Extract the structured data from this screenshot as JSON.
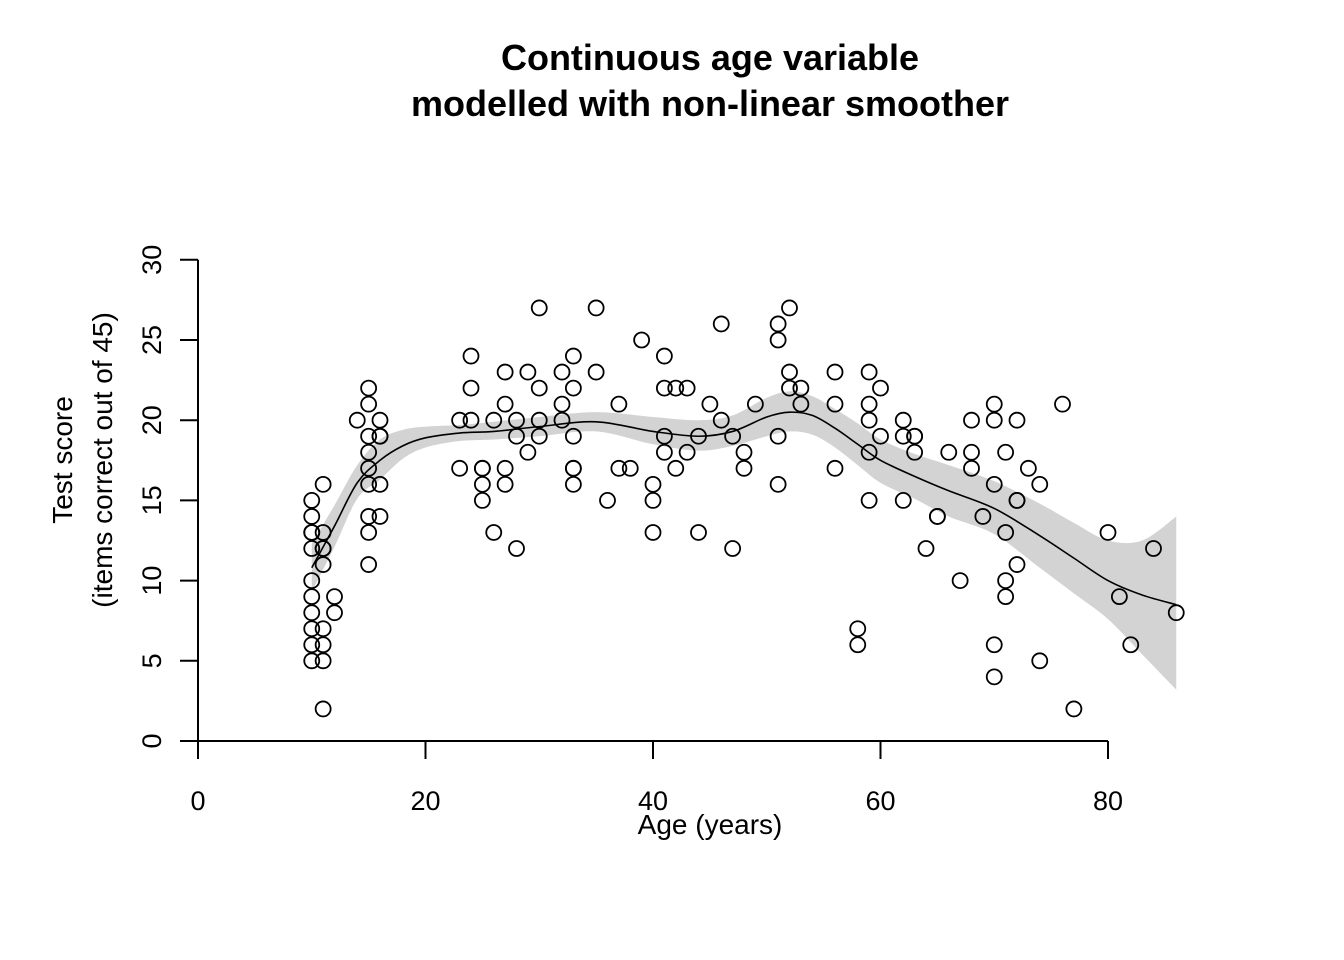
{
  "chart_data": {
    "type": "scatter",
    "title": [
      "Continuous age variable",
      "modelled with non-linear smoother"
    ],
    "xlabel": "Age (years)",
    "ylabel": [
      "Test score",
      "(items correct out of 45)"
    ],
    "xlim": [
      0,
      86
    ],
    "ylim": [
      0,
      30
    ],
    "x_ticks": [
      0,
      20,
      40,
      60,
      80
    ],
    "y_ticks": [
      0,
      5,
      10,
      15,
      20,
      25,
      30
    ],
    "grid": false,
    "points": [
      [
        10,
        15
      ],
      [
        10,
        14
      ],
      [
        10,
        13
      ],
      [
        10,
        13
      ],
      [
        10,
        12
      ],
      [
        10,
        10
      ],
      [
        10,
        9
      ],
      [
        10,
        8
      ],
      [
        10,
        7
      ],
      [
        10,
        6
      ],
      [
        10,
        5
      ],
      [
        11,
        16
      ],
      [
        11,
        13
      ],
      [
        11,
        12
      ],
      [
        11,
        12
      ],
      [
        11,
        11
      ],
      [
        11,
        7
      ],
      [
        11,
        6
      ],
      [
        11,
        5
      ],
      [
        11,
        2
      ],
      [
        12,
        9
      ],
      [
        12,
        8
      ],
      [
        14,
        20
      ],
      [
        15,
        22
      ],
      [
        15,
        21
      ],
      [
        15,
        19
      ],
      [
        15,
        18
      ],
      [
        15,
        17
      ],
      [
        15,
        16
      ],
      [
        15,
        14
      ],
      [
        15,
        13
      ],
      [
        15,
        11
      ],
      [
        16,
        20
      ],
      [
        16,
        19
      ],
      [
        16,
        19
      ],
      [
        16,
        16
      ],
      [
        16,
        14
      ],
      [
        23,
        20
      ],
      [
        23,
        17
      ],
      [
        24,
        24
      ],
      [
        24,
        22
      ],
      [
        24,
        20
      ],
      [
        25,
        17
      ],
      [
        25,
        17
      ],
      [
        25,
        16
      ],
      [
        25,
        15
      ],
      [
        26,
        20
      ],
      [
        26,
        13
      ],
      [
        27,
        23
      ],
      [
        27,
        21
      ],
      [
        27,
        17
      ],
      [
        27,
        16
      ],
      [
        28,
        20
      ],
      [
        28,
        19
      ],
      [
        28,
        12
      ],
      [
        29,
        23
      ],
      [
        29,
        18
      ],
      [
        30,
        27
      ],
      [
        30,
        22
      ],
      [
        30,
        20
      ],
      [
        30,
        19
      ],
      [
        32,
        23
      ],
      [
        32,
        21
      ],
      [
        32,
        20
      ],
      [
        33,
        24
      ],
      [
        33,
        22
      ],
      [
        33,
        19
      ],
      [
        33,
        17
      ],
      [
        33,
        17
      ],
      [
        33,
        16
      ],
      [
        35,
        27
      ],
      [
        35,
        23
      ],
      [
        36,
        15
      ],
      [
        37,
        21
      ],
      [
        37,
        17
      ],
      [
        38,
        17
      ],
      [
        39,
        25
      ],
      [
        40,
        16
      ],
      [
        40,
        15
      ],
      [
        40,
        13
      ],
      [
        41,
        24
      ],
      [
        41,
        22
      ],
      [
        41,
        19
      ],
      [
        41,
        18
      ],
      [
        42,
        22
      ],
      [
        42,
        17
      ],
      [
        43,
        22
      ],
      [
        43,
        18
      ],
      [
        44,
        19
      ],
      [
        44,
        13
      ],
      [
        45,
        21
      ],
      [
        46,
        26
      ],
      [
        46,
        20
      ],
      [
        47,
        19
      ],
      [
        47,
        12
      ],
      [
        48,
        18
      ],
      [
        48,
        17
      ],
      [
        49,
        21
      ],
      [
        51,
        26
      ],
      [
        51,
        25
      ],
      [
        51,
        19
      ],
      [
        51,
        16
      ],
      [
        52,
        27
      ],
      [
        52,
        23
      ],
      [
        52,
        22
      ],
      [
        53,
        22
      ],
      [
        53,
        21
      ],
      [
        56,
        23
      ],
      [
        56,
        21
      ],
      [
        56,
        17
      ],
      [
        58,
        7
      ],
      [
        58,
        6
      ],
      [
        59,
        23
      ],
      [
        59,
        21
      ],
      [
        59,
        20
      ],
      [
        59,
        18
      ],
      [
        59,
        15
      ],
      [
        60,
        22
      ],
      [
        60,
        19
      ],
      [
        62,
        20
      ],
      [
        62,
        19
      ],
      [
        62,
        15
      ],
      [
        63,
        19
      ],
      [
        63,
        19
      ],
      [
        63,
        18
      ],
      [
        64,
        12
      ],
      [
        65,
        14
      ],
      [
        65,
        14
      ],
      [
        66,
        18
      ],
      [
        67,
        10
      ],
      [
        68,
        20
      ],
      [
        68,
        18
      ],
      [
        68,
        17
      ],
      [
        69,
        14
      ],
      [
        70,
        21
      ],
      [
        70,
        20
      ],
      [
        70,
        16
      ],
      [
        70,
        6
      ],
      [
        70,
        4
      ],
      [
        71,
        18
      ],
      [
        71,
        13
      ],
      [
        71,
        10
      ],
      [
        71,
        9
      ],
      [
        72,
        20
      ],
      [
        72,
        15
      ],
      [
        72,
        15
      ],
      [
        72,
        11
      ],
      [
        73,
        17
      ],
      [
        74,
        16
      ],
      [
        74,
        5
      ],
      [
        76,
        21
      ],
      [
        77,
        2
      ],
      [
        80,
        13
      ],
      [
        81,
        9
      ],
      [
        82,
        6
      ],
      [
        84,
        12
      ],
      [
        86,
        8
      ]
    ],
    "smoother": {
      "x": [
        10,
        12,
        14,
        16,
        18,
        20,
        23,
        26,
        30,
        35,
        40,
        44,
        47,
        50,
        52,
        54,
        56,
        58,
        60,
        63,
        66,
        70,
        74,
        77,
        80,
        83,
        86
      ],
      "y": [
        10.8,
        13.4,
        16.1,
        17.5,
        18.4,
        18.9,
        19.2,
        19.3,
        19.6,
        19.9,
        19.3,
        19.0,
        19.3,
        20.2,
        20.5,
        20.3,
        19.5,
        18.5,
        17.5,
        16.5,
        15.6,
        14.5,
        12.8,
        11.4,
        10.0,
        9.1,
        8.5
      ],
      "lower": [
        9.3,
        12.1,
        15.1,
        16.3,
        17.6,
        18.3,
        18.7,
        18.8,
        19.0,
        19.3,
        18.5,
        18.1,
        18.4,
        19.0,
        19.3,
        19.1,
        18.3,
        17.2,
        16.1,
        15.1,
        14.0,
        12.9,
        10.8,
        9.2,
        7.6,
        5.4,
        3.2
      ],
      "upper": [
        12.3,
        14.7,
        17.2,
        18.8,
        19.4,
        19.6,
        19.7,
        19.9,
        20.2,
        20.5,
        20.2,
        20.0,
        20.3,
        21.4,
        21.8,
        21.5,
        20.7,
        19.8,
        18.8,
        17.9,
        17.2,
        16.2,
        14.8,
        13.6,
        12.5,
        12.5,
        14.0
      ]
    }
  }
}
